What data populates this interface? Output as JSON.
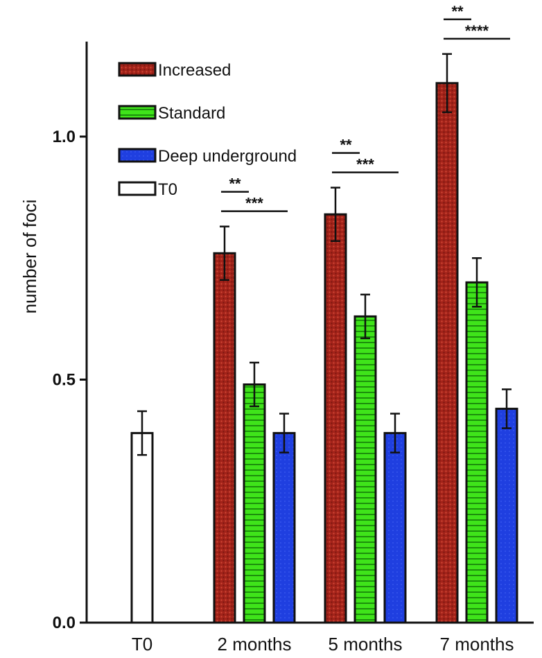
{
  "chart_data": {
    "type": "bar",
    "title": "",
    "ylabel": "number of foci",
    "xlabel": "",
    "ylim": [
      0,
      1.2
    ],
    "yticks": [
      "0.0",
      "0.5",
      "1.0"
    ],
    "categories": [
      "T0",
      "2 months",
      "5 months",
      "7 months"
    ],
    "series": [
      {
        "name": "Increased",
        "color": "#b22a1e",
        "pattern": "dots",
        "values": [
          null,
          0.76,
          0.84,
          1.11
        ],
        "errors": [
          null,
          0.055,
          0.055,
          0.06
        ]
      },
      {
        "name": "Standard",
        "color": "#39e018",
        "pattern": "horizontal-stripes",
        "values": [
          null,
          0.49,
          0.63,
          0.7
        ],
        "errors": [
          null,
          0.045,
          0.045,
          0.05
        ]
      },
      {
        "name": "Deep underground",
        "color": "#1f3fe0",
        "pattern": "solid",
        "values": [
          null,
          0.39,
          0.39,
          0.44
        ],
        "errors": [
          null,
          0.04,
          0.04,
          0.04
        ]
      },
      {
        "name": "T0",
        "color": "#ffffff",
        "pattern": "none",
        "values": [
          0.39,
          null,
          null,
          null
        ],
        "errors": [
          0.045,
          null,
          null,
          null
        ]
      }
    ],
    "significance": [
      {
        "category": "2 months",
        "from": "Increased",
        "to": "Standard",
        "label": "**"
      },
      {
        "category": "2 months",
        "from": "Increased",
        "to": "Deep underground",
        "label": "***"
      },
      {
        "category": "5 months",
        "from": "Increased",
        "to": "Standard",
        "label": "**"
      },
      {
        "category": "5 months",
        "from": "Increased",
        "to": "Deep underground",
        "label": "***"
      },
      {
        "category": "7 months",
        "from": "Increased",
        "to": "Standard",
        "label": "**"
      },
      {
        "category": "7 months",
        "from": "Increased",
        "to": "Deep underground",
        "label": "****"
      }
    ],
    "legend_position": "top-left",
    "grid": false
  }
}
